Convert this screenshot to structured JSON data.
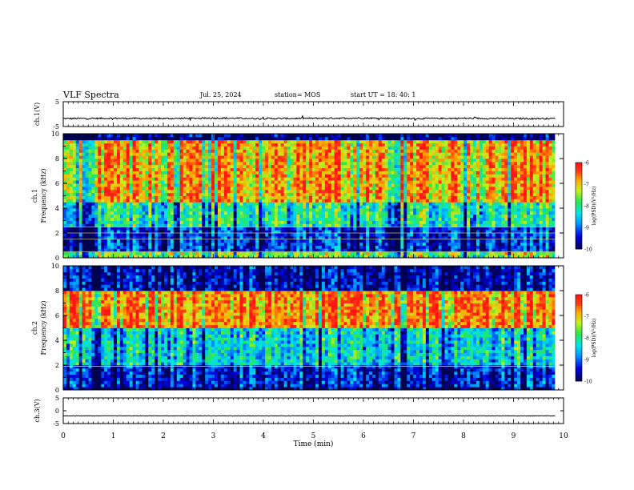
{
  "header": {
    "title": "VLF Spectra",
    "date": "Jul. 25, 2024",
    "station": "station= MOS",
    "start": "start UT =  18: 40: 1"
  },
  "chart_data": [
    {
      "type": "line",
      "title": "ch.1(V)",
      "ylabel": "ch.1(V)",
      "ylim": [
        -5,
        5
      ],
      "yticks": [
        "5",
        "-5"
      ],
      "x": [
        0,
        1,
        2,
        3,
        4,
        5,
        6,
        7,
        8,
        9,
        9.83
      ],
      "values": [
        -1.8,
        -1.7,
        -1.8,
        -1.6,
        -1.8,
        -1.7,
        -1.6,
        -1.8,
        -1.7,
        -1.8,
        -1.8
      ],
      "xlabel": "Time (min)",
      "xlim": [
        0,
        10
      ]
    },
    {
      "type": "heatmap",
      "ylabel_top": "ch.1",
      "ylabel": "Frequency (kHz)",
      "ylim": [
        0,
        10
      ],
      "yticks": [
        "0",
        "2",
        "4",
        "6",
        "8",
        "10"
      ],
      "xlim": [
        0,
        10
      ],
      "data_end_min": 9.83,
      "dominant_bands": [
        {
          "from_khz": 4.5,
          "to_khz": 9.6,
          "level": -6.8
        },
        {
          "from_khz": 2.5,
          "to_khz": 4.5,
          "level": -8.0
        },
        {
          "from_khz": 0.5,
          "to_khz": 2.5,
          "level": -9.2
        },
        {
          "from_khz": 0.0,
          "to_khz": 0.5,
          "level": -7.5
        }
      ],
      "tone_lines_khz": [
        0.5,
        1.5,
        2.0,
        2.5
      ],
      "colorbar": {
        "label": "log(PSD)(V²/Hz)",
        "ticks": [
          "-6",
          "-7",
          "-8",
          "-9",
          "-10"
        ],
        "range": [
          -10,
          -6
        ]
      }
    },
    {
      "type": "heatmap",
      "ylabel_top": "ch.2",
      "ylabel": "Frequency (kHz)",
      "ylim": [
        0,
        10
      ],
      "yticks": [
        "0",
        "2",
        "4",
        "6",
        "8",
        "10"
      ],
      "xlim": [
        0,
        10
      ],
      "data_end_min": 9.83,
      "dominant_bands": [
        {
          "from_khz": 5.0,
          "to_khz": 8.0,
          "level": -6.6
        },
        {
          "from_khz": 2.0,
          "to_khz": 5.0,
          "level": -8.3
        },
        {
          "from_khz": 0.3,
          "to_khz": 2.0,
          "level": -9.3
        },
        {
          "from_khz": 8.0,
          "to_khz": 10.0,
          "level": -9.5
        }
      ],
      "tone_lines_khz": [
        1.9
      ],
      "colorbar": {
        "label": "log(PSD)(V²/Hz)",
        "ticks": [
          "-6",
          "-7",
          "-8",
          "-9",
          "-10"
        ],
        "range": [
          -10,
          -6
        ]
      }
    },
    {
      "type": "line",
      "title": "ch.3(V)",
      "ylabel": "ch.3(V)",
      "ylim": [
        -5,
        5
      ],
      "yticks": [
        "5",
        "0",
        "-5"
      ],
      "x": [
        0,
        1,
        2,
        3,
        4,
        5,
        6,
        7,
        8,
        9,
        9.83
      ],
      "values": [
        -2.0,
        -2.0,
        -2.0,
        -2.0,
        -2.0,
        -2.0,
        -2.0,
        -2.0,
        -2.0,
        -2.0,
        -2.0
      ],
      "xlabel": "Time (min)",
      "xlim": [
        0,
        10
      ],
      "xticks": [
        "0",
        "1",
        "2",
        "3",
        "4",
        "5",
        "6",
        "7",
        "8",
        "9",
        "10"
      ]
    }
  ]
}
